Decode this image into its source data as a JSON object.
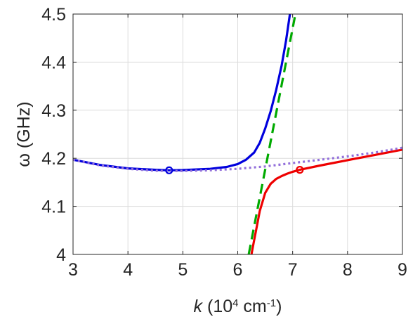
{
  "chart_data": {
    "type": "line",
    "title": "",
    "xlabel": {
      "symbol": "k",
      "text": " (10",
      "sup1": "4",
      "unit": " cm",
      "sup2": "-1",
      "close": ")"
    },
    "ylabel": "ω (GHz)",
    "xlim": [
      3,
      9
    ],
    "ylim": [
      4.0,
      4.5
    ],
    "xticks": [
      3,
      4,
      5,
      6,
      7,
      8,
      9
    ],
    "yticks": [
      4.0,
      4.1,
      4.2,
      4.3,
      4.4,
      4.5
    ],
    "xtick_labels": [
      "3",
      "4",
      "5",
      "6",
      "7",
      "8",
      "9"
    ],
    "ytick_labels": [
      "4",
      "4.1",
      "4.2",
      "4.3",
      "4.4",
      "4.5"
    ],
    "grid": true,
    "series": [
      {
        "color": "#0000dd",
        "style": "solid",
        "x": [
          3.0,
          3.5,
          4.0,
          4.5,
          4.75,
          5.0,
          5.5,
          5.8,
          6.0,
          6.15,
          6.3,
          6.4,
          6.5,
          6.6,
          6.7,
          6.8,
          6.88,
          6.95
        ],
        "y": [
          4.197,
          4.186,
          4.179,
          4.176,
          4.175,
          4.1755,
          4.178,
          4.182,
          4.188,
          4.197,
          4.212,
          4.232,
          4.262,
          4.298,
          4.342,
          4.393,
          4.445,
          4.5
        ]
      },
      {
        "color": "#ee0000",
        "style": "solid",
        "x": [
          6.25,
          6.3,
          6.35,
          6.4,
          6.5,
          6.6,
          6.7,
          6.8,
          6.9,
          7.0,
          7.13,
          7.5,
          8.0,
          8.5,
          9.0
        ],
        "y": [
          4.0,
          4.03,
          4.06,
          4.09,
          4.128,
          4.147,
          4.157,
          4.163,
          4.168,
          4.172,
          4.176,
          4.185,
          4.196,
          4.207,
          4.218
        ]
      },
      {
        "color": "#00aa00",
        "style": "dashed",
        "x": [
          6.2,
          7.05
        ],
        "y": [
          4.0,
          4.5
        ]
      },
      {
        "color": "#9370db",
        "style": "dotted",
        "x": [
          3.0,
          3.5,
          4.0,
          4.5,
          5.0,
          5.5,
          6.0,
          6.5,
          7.0,
          7.5,
          8.0,
          8.5,
          9.0
        ],
        "y": [
          4.197,
          4.185,
          4.178,
          4.174,
          4.1735,
          4.175,
          4.178,
          4.183,
          4.19,
          4.197,
          4.204,
          4.212,
          4.222
        ]
      }
    ],
    "markers": [
      {
        "x": 4.75,
        "y": 4.175,
        "color": "#0000dd",
        "shape": "open-circle"
      },
      {
        "x": 7.13,
        "y": 4.176,
        "color": "#ee0000",
        "shape": "open-circle"
      }
    ]
  }
}
